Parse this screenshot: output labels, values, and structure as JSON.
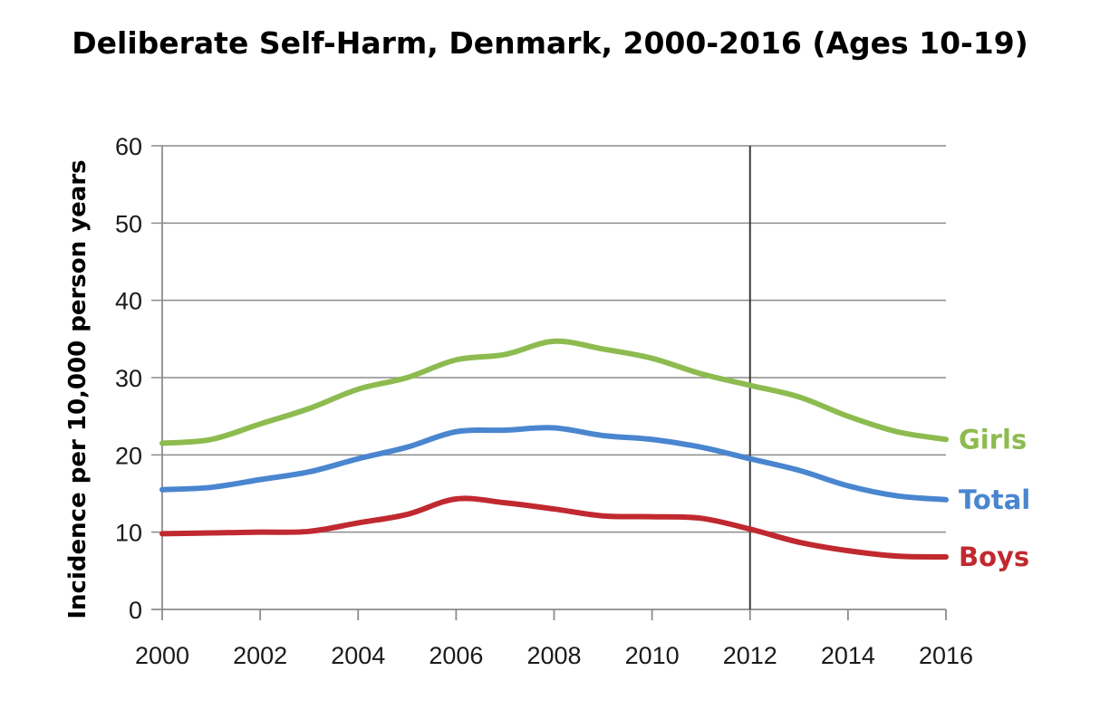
{
  "chart_data": {
    "type": "line",
    "title": "Deliberate Self-Harm, Denmark, 2000-2016 (Ages 10-19)",
    "xlabel": "",
    "ylabel": "Incidence per 10,000 person years",
    "x": [
      2000,
      2001,
      2002,
      2003,
      2004,
      2005,
      2006,
      2007,
      2008,
      2009,
      2010,
      2011,
      2012,
      2013,
      2014,
      2015,
      2016
    ],
    "xticks": [
      2000,
      2002,
      2004,
      2006,
      2008,
      2010,
      2012,
      2014,
      2016
    ],
    "yticks": [
      0,
      10,
      20,
      30,
      40,
      50,
      60
    ],
    "xlim": [
      2000,
      2016
    ],
    "ylim": [
      0,
      60
    ],
    "grid": "horizontal",
    "vertical_marker_x": 2012,
    "series": [
      {
        "name": "Girls",
        "color": "#8dbb4f",
        "values": [
          21.5,
          22,
          24,
          26,
          28.5,
          30,
          32.3,
          33,
          34.7,
          33.7,
          32.5,
          30.5,
          29,
          27.5,
          25,
          23,
          22
        ]
      },
      {
        "name": "Total",
        "color": "#4a86cf",
        "values": [
          15.5,
          15.8,
          16.8,
          17.8,
          19.5,
          21,
          23,
          23.2,
          23.5,
          22.5,
          22,
          21,
          19.5,
          18,
          16,
          14.7,
          14.2
        ]
      },
      {
        "name": "Boys",
        "color": "#c0292f",
        "values": [
          9.8,
          9.9,
          10,
          10.1,
          11.2,
          12.3,
          14.3,
          13.8,
          13,
          12.1,
          12,
          11.8,
          10.4,
          8.7,
          7.6,
          6.9,
          6.8
        ]
      }
    ]
  }
}
